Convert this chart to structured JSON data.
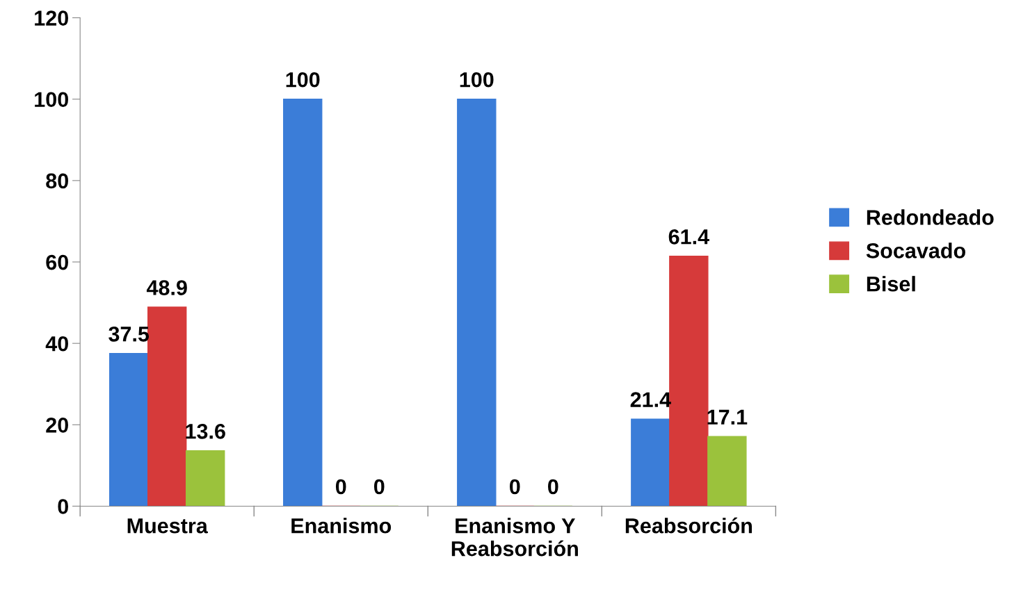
{
  "chart_data": {
    "type": "bar",
    "categories": [
      "Muestra",
      "Enanismo",
      "Enanismo Y Reabsorción",
      "Reabsorción"
    ],
    "series": [
      {
        "name": "Redondeado",
        "color": "#3b7dd8",
        "values": [
          37.5,
          100,
          100,
          21.4
        ]
      },
      {
        "name": "Socavado",
        "color": "#d63a3a",
        "values": [
          48.9,
          0,
          0,
          61.4
        ]
      },
      {
        "name": "Bisel",
        "color": "#9bc23c",
        "values": [
          13.6,
          0,
          0,
          17.1
        ]
      }
    ],
    "ylim": [
      0,
      120
    ],
    "yticks": [
      0,
      20,
      40,
      60,
      80,
      100,
      120
    ],
    "data_labels": true,
    "grid": false,
    "legend": "right"
  }
}
